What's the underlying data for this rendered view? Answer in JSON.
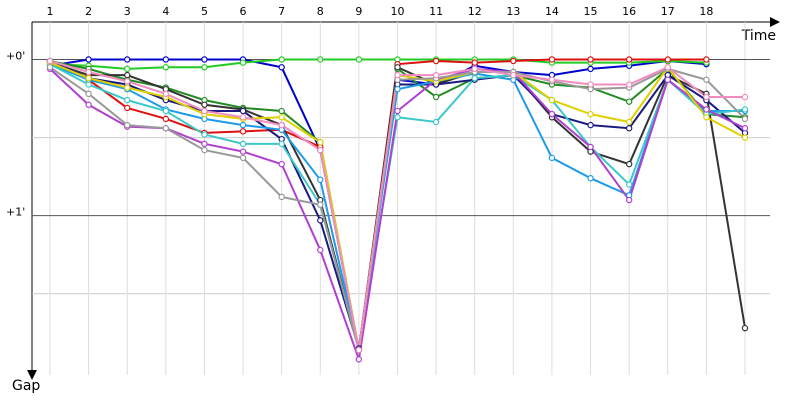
{
  "chart_data": {
    "type": "line",
    "x_label": "Time",
    "y_label": "Gap",
    "categories": [
      "1",
      "2",
      "3",
      "4",
      "5",
      "6",
      "7",
      "8",
      "9",
      "10",
      "11",
      "12",
      "13",
      "14",
      "15",
      "16",
      "17",
      "18",
      null
    ],
    "ylim": [
      -0.24,
      2.02
    ],
    "y_inverted": true,
    "yticks": [
      {
        "value": 0,
        "label": "+0'"
      },
      {
        "value": 1,
        "label": "+1'"
      }
    ],
    "y_minor_ticks": [
      0.5,
      1.5
    ],
    "grid": true,
    "series": [
      {
        "color": "#0000cc",
        "values": [
          0.04,
          0,
          0,
          0,
          0,
          0,
          0.05,
          0.58,
          1.86,
          0.13,
          0.16,
          0.04,
          0.08,
          0.1,
          0.06,
          0.04,
          0.01,
          0.03,
          null
        ]
      },
      {
        "color": "#22cc22",
        "values": [
          0.03,
          0.04,
          0.06,
          0.05,
          0.05,
          0.02,
          0,
          0,
          0,
          0,
          0,
          0,
          0,
          0.02,
          0.02,
          0.02,
          0.01,
          0.02,
          null
        ]
      },
      {
        "color": "#e01010",
        "values": [
          0.01,
          0.13,
          0.31,
          0.38,
          0.47,
          0.46,
          0.45,
          0.56,
          1.86,
          0.03,
          0.01,
          0.02,
          0.01,
          0,
          0,
          0,
          0,
          0,
          null
        ]
      },
      {
        "color": "#228b22",
        "values": [
          0.01,
          0.06,
          0.13,
          0.18,
          0.26,
          0.31,
          0.33,
          0.53,
          1.86,
          0.06,
          0.24,
          0.12,
          0.1,
          0.16,
          0.18,
          0.27,
          0.06,
          0.35,
          0.37
        ]
      },
      {
        "color": "#333333",
        "values": [
          0.02,
          0.1,
          0.1,
          0.19,
          0.29,
          0.32,
          0.42,
          0.9,
          1.86,
          0.05,
          0.16,
          0.08,
          0.08,
          0.37,
          0.59,
          0.67,
          0.1,
          0.22,
          1.72
        ]
      },
      {
        "color": "#1a1a80",
        "values": [
          0.01,
          0.12,
          0.16,
          0.26,
          0.33,
          0.33,
          0.51,
          1.03,
          1.85,
          0.16,
          0.16,
          0.13,
          0.1,
          0.35,
          0.42,
          0.44,
          0.1,
          0.26,
          0.47
        ]
      },
      {
        "color": "#1e9be8",
        "values": [
          0.03,
          0.13,
          0.19,
          0.32,
          0.38,
          0.42,
          0.45,
          0.77,
          1.86,
          0.19,
          0.14,
          0.09,
          0.13,
          0.63,
          0.76,
          0.87,
          0.13,
          0.33,
          0.33
        ]
      },
      {
        "color": "#3cc8c8",
        "values": [
          0.03,
          0.16,
          0.26,
          0.33,
          0.48,
          0.54,
          0.54,
          0.93,
          1.86,
          0.37,
          0.4,
          0.12,
          0.1,
          0.26,
          0.56,
          0.8,
          0.13,
          0.35,
          0.32
        ]
      },
      {
        "color": "#b040d0",
        "values": [
          0.06,
          0.29,
          0.43,
          0.44,
          0.54,
          0.59,
          0.67,
          1.22,
          1.92,
          0.33,
          0.13,
          0.06,
          0.08,
          0.35,
          0.56,
          0.9,
          0.13,
          0.32,
          0.44
        ]
      },
      {
        "color": "#e0d000",
        "values": [
          0.02,
          0.12,
          0.18,
          0.24,
          0.35,
          0.38,
          0.37,
          0.53,
          1.86,
          0.1,
          0.14,
          0.08,
          0.08,
          0.26,
          0.35,
          0.4,
          0.05,
          0.37,
          0.5
        ]
      },
      {
        "color": "#999999",
        "values": [
          0.05,
          0.22,
          0.42,
          0.44,
          0.58,
          0.63,
          0.88,
          0.93,
          1.86,
          0.13,
          0.12,
          0.08,
          0.08,
          0.14,
          0.19,
          0.18,
          0.06,
          0.13,
          0.38
        ]
      },
      {
        "color": "#f08cc0",
        "values": [
          0.01,
          0.08,
          0.14,
          0.22,
          0.33,
          0.37,
          0.42,
          0.58,
          1.86,
          0.1,
          0.1,
          0.06,
          0.1,
          0.13,
          0.16,
          0.16,
          0.05,
          0.24,
          0.24
        ]
      }
    ]
  }
}
